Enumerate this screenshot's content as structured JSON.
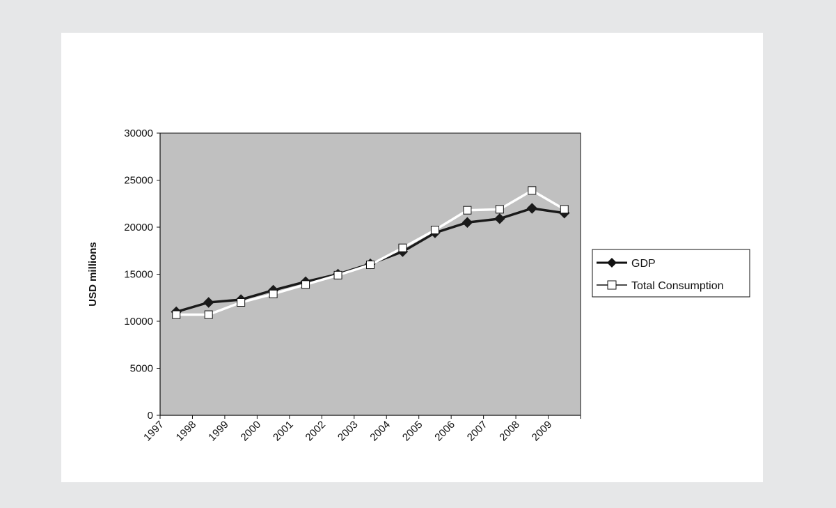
{
  "chart_data": {
    "type": "line",
    "title": "",
    "xlabel": "",
    "ylabel": "USD millions",
    "categories": [
      "1997",
      "1998",
      "1999",
      "2000",
      "2001",
      "2002",
      "2003",
      "2004",
      "2005",
      "2006",
      "2007",
      "2008",
      "2009"
    ],
    "ylim": [
      0,
      30000
    ],
    "yticks": [
      0,
      5000,
      10000,
      15000,
      20000,
      25000,
      30000
    ],
    "grid": false,
    "legend_position": "right",
    "plot_background": "#c0c0c0",
    "series": [
      {
        "name": "GDP",
        "color": "#1a1a1a",
        "marker": "diamond",
        "values": [
          11000,
          12000,
          12300,
          13300,
          14200,
          15000,
          16100,
          17400,
          19400,
          20500,
          20900,
          22000,
          21500
        ]
      },
      {
        "name": "Total Consumption",
        "color": "#ffffff",
        "marker": "square",
        "values": [
          10700,
          10700,
          12000,
          12900,
          13900,
          14900,
          16000,
          17800,
          19700,
          21800,
          21900,
          23900,
          21900
        ]
      }
    ]
  }
}
